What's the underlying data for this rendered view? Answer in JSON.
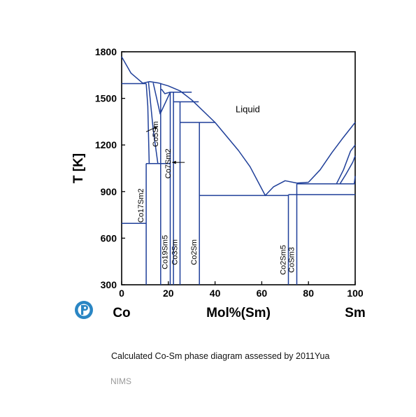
{
  "caption": "Calculated Co-Sm phase diagram assessed by 2011Yua",
  "credit": "NIMS",
  "logo_icon": "pauling-file-logo-icon",
  "colors": {
    "line": "#1f3f99",
    "axis": "#000000",
    "logo": "#2a86c4"
  },
  "chart_data": {
    "type": "phase-diagram",
    "xlabel": "Mol%(Sm)",
    "ylabel": "T [K]",
    "x_end_left": "Co",
    "x_end_right": "Sm",
    "xlim": [
      0,
      100
    ],
    "ylim": [
      300,
      1800
    ],
    "xticks": [
      0,
      20,
      40,
      60,
      80,
      100
    ],
    "yticks": [
      300,
      600,
      900,
      1200,
      1500,
      1800
    ],
    "grid": false,
    "region_labels": [
      {
        "text": "Liquid",
        "x": 54,
        "y": 1410
      }
    ],
    "compounds": [
      {
        "name": "Co17Sm2",
        "x": 10.5,
        "t_top": 1080,
        "label_y": 810
      },
      {
        "name": "Co5Sm",
        "x": 16.7,
        "t_top": 1598,
        "label_y": 1270
      },
      {
        "name": "Co19Sm5",
        "x": 20.8,
        "t_top": 1540,
        "label_y": 510
      },
      {
        "name": "Co7Sm2",
        "x": 22.2,
        "t_top": 1540,
        "label_y": 1080
      },
      {
        "name": "Co3Sm",
        "x": 25,
        "t_top": 1478,
        "label_y": 510
      },
      {
        "name": "Co2Sm",
        "x": 33.3,
        "t_top": 1345,
        "label_y": 510
      },
      {
        "name": "Co2Sm5",
        "x": 71.4,
        "t_top": 880,
        "label_y": 460
      },
      {
        "name": "CoSm3",
        "x": 75,
        "t_top": 950,
        "label_y": 460
      }
    ],
    "isotherms": [
      {
        "t": 1595,
        "x_from": 0,
        "x_to": 10.5
      },
      {
        "t": 695,
        "x_from": 0,
        "x_to": 10.5
      },
      {
        "t": 1080,
        "x_from": 10.5,
        "x_to": 20.8
      },
      {
        "t": 1540,
        "x_from": 20.8,
        "x_to": 30
      },
      {
        "t": 1478,
        "x_from": 22.2,
        "x_to": 33
      },
      {
        "t": 1345,
        "x_from": 25,
        "x_to": 40
      },
      {
        "t": 875,
        "x_from": 33.3,
        "x_to": 71.4
      },
      {
        "t": 880,
        "x_from": 71.4,
        "x_to": 75
      },
      {
        "t": 950,
        "x_from": 75,
        "x_to": 100
      },
      {
        "t": 880,
        "x_from": 75,
        "x_to": 100
      }
    ],
    "liquidus": [
      [
        0,
        1768
      ],
      [
        4,
        1662
      ],
      [
        9,
        1598
      ],
      [
        12,
        1608
      ],
      [
        16,
        1598
      ],
      [
        20,
        1580
      ],
      [
        25,
        1548
      ],
      [
        30,
        1490
      ],
      [
        40,
        1345
      ],
      [
        50,
        1165
      ],
      [
        55,
        1060
      ],
      [
        61.5,
        875
      ],
      [
        65,
        930
      ],
      [
        70,
        970
      ],
      [
        75,
        955
      ],
      [
        80,
        960
      ],
      [
        85,
        1040
      ],
      [
        90,
        1150
      ],
      [
        95,
        1250
      ],
      [
        100,
        1345
      ]
    ],
    "phase_boundaries": [
      [
        [
          10.5,
          1595
        ],
        [
          11.2,
          1450
        ],
        [
          11.8,
          1080
        ]
      ],
      [
        [
          11.5,
          1605
        ],
        [
          13.5,
          1300
        ],
        [
          15.5,
          1080
        ]
      ],
      [
        [
          13.5,
          1600
        ],
        [
          16.5,
          1400
        ],
        [
          20.8,
          1540
        ]
      ],
      [
        [
          17,
          1560
        ],
        [
          18.5,
          1530
        ],
        [
          20.8,
          1540
        ]
      ],
      [
        [
          92,
          950
        ],
        [
          95,
          1040
        ],
        [
          98,
          1160
        ],
        [
          100,
          1200
        ]
      ],
      [
        [
          93.5,
          950
        ],
        [
          96,
          1010
        ],
        [
          99,
          1090
        ],
        [
          100,
          1130
        ]
      ],
      [
        [
          99.6,
          950
        ],
        [
          100,
          1000
        ]
      ]
    ],
    "arrows": [
      {
        "from": [
          10.5,
          1285
        ],
        "to": [
          15.5,
          1320
        ]
      },
      {
        "from": [
          27,
          1088
        ],
        "to": [
          21.6,
          1088
        ]
      }
    ]
  }
}
